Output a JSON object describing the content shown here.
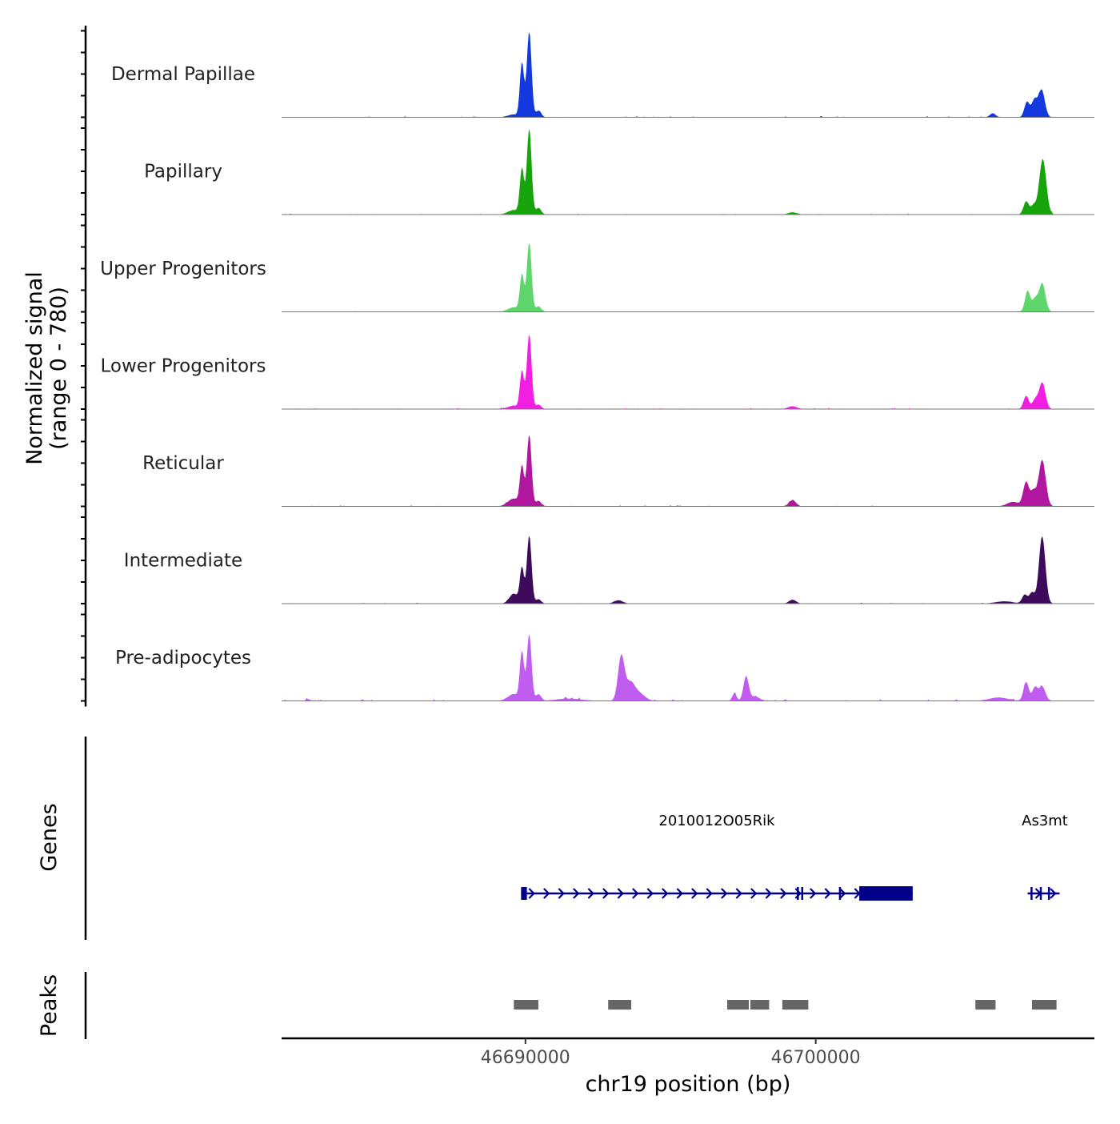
{
  "chart_data": {
    "type": "area",
    "title": "",
    "y_axis_label_line1": "Normalized signal",
    "y_axis_label_line2": "(range 0 - 780)",
    "ylim": [
      0,
      780
    ],
    "xlabel": "chr19 position (bp)",
    "xlim": [
      46681600,
      46709600
    ],
    "x_ticks": [
      46690000,
      46700000
    ],
    "x_tick_labels": [
      "46690000",
      "46700000"
    ],
    "tracks": [
      {
        "name": "Dermal Papillae",
        "color": "#1339de",
        "peaks": [
          {
            "center": 46689880,
            "height": 490,
            "width": 70
          },
          {
            "center": 46690130,
            "height": 780,
            "width": 80
          },
          {
            "center": 46690450,
            "height": 60,
            "width": 90
          },
          {
            "center": 46689600,
            "height": 25,
            "width": 200
          },
          {
            "center": 46707280,
            "height": 140,
            "width": 90
          },
          {
            "center": 46707530,
            "height": 150,
            "width": 90
          },
          {
            "center": 46707780,
            "height": 250,
            "width": 110
          },
          {
            "center": 46706100,
            "height": 35,
            "width": 100
          }
        ],
        "noise": 0.8
      },
      {
        "name": "Papillary",
        "color": "#17a30a",
        "peaks": [
          {
            "center": 46689880,
            "height": 410,
            "width": 70
          },
          {
            "center": 46690130,
            "height": 780,
            "width": 80
          },
          {
            "center": 46690450,
            "height": 60,
            "width": 90
          },
          {
            "center": 46689600,
            "height": 40,
            "width": 200
          },
          {
            "center": 46707250,
            "height": 120,
            "width": 90
          },
          {
            "center": 46707500,
            "height": 80,
            "width": 90
          },
          {
            "center": 46707820,
            "height": 500,
            "width": 120
          },
          {
            "center": 46699200,
            "height": 20,
            "width": 150
          }
        ],
        "noise": 0.6
      },
      {
        "name": "Upper Progenitors",
        "color": "#5ed66b",
        "peaks": [
          {
            "center": 46689880,
            "height": 330,
            "width": 70
          },
          {
            "center": 46690130,
            "height": 630,
            "width": 80
          },
          {
            "center": 46690450,
            "height": 50,
            "width": 90
          },
          {
            "center": 46689600,
            "height": 40,
            "width": 200
          },
          {
            "center": 46707300,
            "height": 190,
            "width": 90
          },
          {
            "center": 46707550,
            "height": 110,
            "width": 90
          },
          {
            "center": 46707800,
            "height": 260,
            "width": 110
          }
        ],
        "noise": 0.5
      },
      {
        "name": "Lower Progenitors",
        "color": "#f21ee2",
        "peaks": [
          {
            "center": 46689880,
            "height": 340,
            "width": 70
          },
          {
            "center": 46690130,
            "height": 680,
            "width": 80
          },
          {
            "center": 46690450,
            "height": 40,
            "width": 90
          },
          {
            "center": 46689600,
            "height": 30,
            "width": 200
          },
          {
            "center": 46707250,
            "height": 120,
            "width": 90
          },
          {
            "center": 46707550,
            "height": 80,
            "width": 90
          },
          {
            "center": 46707800,
            "height": 240,
            "width": 110
          },
          {
            "center": 46699200,
            "height": 25,
            "width": 150
          }
        ],
        "noise": 0.8
      },
      {
        "name": "Reticular",
        "color": "#b1169f",
        "peaks": [
          {
            "center": 46689880,
            "height": 350,
            "width": 70
          },
          {
            "center": 46690130,
            "height": 650,
            "width": 80
          },
          {
            "center": 46690450,
            "height": 50,
            "width": 90
          },
          {
            "center": 46689600,
            "height": 70,
            "width": 200
          },
          {
            "center": 46707250,
            "height": 220,
            "width": 100
          },
          {
            "center": 46707500,
            "height": 130,
            "width": 90
          },
          {
            "center": 46707800,
            "height": 420,
            "width": 120
          },
          {
            "center": 46706800,
            "height": 40,
            "width": 200
          },
          {
            "center": 46699200,
            "height": 55,
            "width": 120
          }
        ],
        "noise": 0.8
      },
      {
        "name": "Intermediate",
        "color": "#3d0a5c",
        "peaks": [
          {
            "center": 46689880,
            "height": 320,
            "width": 70
          },
          {
            "center": 46690130,
            "height": 620,
            "width": 80
          },
          {
            "center": 46690450,
            "height": 40,
            "width": 90
          },
          {
            "center": 46689600,
            "height": 90,
            "width": 150
          },
          {
            "center": 46707200,
            "height": 80,
            "width": 90
          },
          {
            "center": 46707450,
            "height": 100,
            "width": 90
          },
          {
            "center": 46707800,
            "height": 610,
            "width": 110
          },
          {
            "center": 46693200,
            "height": 30,
            "width": 150
          },
          {
            "center": 46699200,
            "height": 35,
            "width": 120
          },
          {
            "center": 46706500,
            "height": 20,
            "width": 300
          }
        ],
        "noise": 0.6
      },
      {
        "name": "Pre-adipocytes",
        "color": "#c15cf0",
        "peaks": [
          {
            "center": 46689880,
            "height": 430,
            "width": 70
          },
          {
            "center": 46690130,
            "height": 600,
            "width": 80
          },
          {
            "center": 46690450,
            "height": 60,
            "width": 90
          },
          {
            "center": 46689600,
            "height": 60,
            "width": 200
          },
          {
            "center": 46693300,
            "height": 400,
            "width": 110
          },
          {
            "center": 46693600,
            "height": 150,
            "width": 150
          },
          {
            "center": 46693900,
            "height": 70,
            "width": 200
          },
          {
            "center": 46697200,
            "height": 70,
            "width": 70
          },
          {
            "center": 46697600,
            "height": 220,
            "width": 90
          },
          {
            "center": 46697900,
            "height": 40,
            "width": 150
          },
          {
            "center": 46707250,
            "height": 170,
            "width": 90
          },
          {
            "center": 46707550,
            "height": 120,
            "width": 90
          },
          {
            "center": 46707800,
            "height": 130,
            "width": 110
          },
          {
            "center": 46706300,
            "height": 30,
            "width": 300
          },
          {
            "center": 46691500,
            "height": 20,
            "width": 400
          },
          {
            "center": 46682500,
            "height": 15,
            "width": 80
          }
        ],
        "noise": 1.2
      }
    ],
    "genes_label": "Genes",
    "genes": [
      {
        "name": "2010012O05Rik",
        "start": 46689850,
        "end": 46703340,
        "strand": "+",
        "thick_start": 46701500,
        "thick_end": 46703340,
        "exons": [
          [
            46689850,
            46690050
          ],
          [
            46699350,
            46699420
          ],
          [
            46699500,
            46699560
          ],
          [
            46700800,
            46700860
          ],
          [
            46701500,
            46703340
          ]
        ]
      },
      {
        "name": "As3mt",
        "start": 46707300,
        "end": 46708400,
        "strand": "+",
        "exons": [
          [
            46707400,
            46707450
          ],
          [
            46707720,
            46707770
          ],
          [
            46708000,
            46708050
          ]
        ]
      }
    ],
    "gene_color": "#000088",
    "peaks_label": "Peaks",
    "peak_regions": [
      [
        46689600,
        46690500
      ],
      [
        46692850,
        46693700
      ],
      [
        46696950,
        46697750
      ],
      [
        46697750,
        46698450
      ],
      [
        46698850,
        46699800
      ],
      [
        46705500,
        46706250
      ],
      [
        46707450,
        46708350
      ]
    ],
    "peak_color": "#666666"
  }
}
